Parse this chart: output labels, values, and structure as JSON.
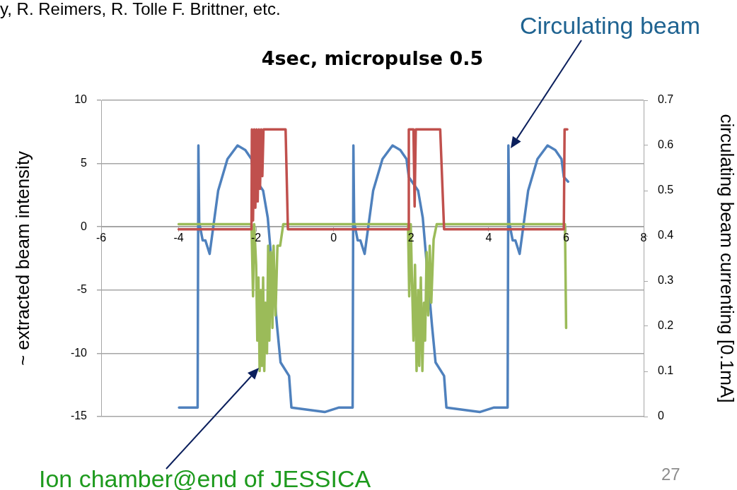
{
  "chart_data": {
    "type": "line",
    "title": "4sec, micropulse 0.5",
    "ylabel": "~ extracted beam intensity",
    "y2label": "circulating beam currenting [0.1mA]",
    "xlim": [
      -6,
      8
    ],
    "xticks": [
      -6,
      -4,
      -2,
      0,
      2,
      4,
      6,
      8
    ],
    "ylim": [
      -15,
      10
    ],
    "yticks": [
      -15,
      -10,
      -5,
      0,
      5,
      10
    ],
    "y2lim": [
      0,
      0.7
    ],
    "y2ticks": [
      0,
      0.1,
      0.2,
      0.3,
      0.4,
      0.5,
      0.6,
      0.7
    ],
    "grid": "y",
    "legend": false,
    "marker": "none",
    "line_style": "solid",
    "series": [
      {
        "color": "#c0504d",
        "x": [
          -4,
          -2.12,
          -2.11,
          -2.08,
          -2.05,
          -2.02,
          -1.99,
          -1.96,
          -1.93,
          -1.9,
          -1.87,
          -1.84,
          -1.81,
          -1.24,
          -1.18,
          1.93,
          1.94,
          2.06,
          2.09,
          2.12,
          2.75,
          2.85,
          5.94,
          5.96,
          6.03
        ],
        "values": [
          -0.2,
          -0.2,
          7.7,
          0.5,
          7.7,
          1.5,
          7.7,
          2,
          7.7,
          3,
          7.7,
          4,
          7.7,
          7.7,
          -0.2,
          -0.2,
          7.7,
          7.7,
          1.6,
          7.7,
          7.7,
          -0.2,
          -0.2,
          7.7,
          7.7
        ]
      },
      {
        "color": "#9bbb59",
        "x": [
          -4,
          -2.12,
          -2.08,
          -2.05,
          -2.0,
          -1.97,
          -1.94,
          -1.91,
          -1.88,
          -1.85,
          -1.82,
          -1.79,
          -1.76,
          -1.72,
          -1.69,
          -1.66,
          -1.62,
          -1.58,
          -1.55,
          -1.5,
          -1.45,
          -1.38,
          -1.3,
          1.92,
          1.95,
          1.99,
          2.02,
          2.06,
          2.1,
          2.14,
          2.18,
          2.21,
          2.25,
          2.29,
          2.33,
          2.36,
          2.4,
          2.44,
          2.48,
          2.52,
          2.58,
          2.66,
          5.97,
          6.0
        ],
        "values": [
          0.2,
          0.2,
          -5.5,
          0.2,
          -3,
          -9,
          -4,
          -11.4,
          -5,
          -11,
          -4,
          -11.4,
          -6,
          -10,
          -1.5,
          -9,
          -2,
          -8,
          -1.5,
          -7,
          -1.5,
          -1.5,
          0.2,
          0.2,
          -5.5,
          0.2,
          -4,
          -9,
          -3,
          -11.4,
          -5,
          -11,
          -4,
          -11.4,
          -6,
          -9,
          -2,
          -7,
          -1.5,
          -6,
          -1,
          0.2,
          0.2,
          -8
        ]
      },
      {
        "color": "#4f81bd",
        "axis": "y2",
        "x": [
          -3.99,
          -3.51,
          -3.49,
          -3.47,
          -3.38,
          -3.31,
          -3.2,
          -2.98,
          -2.74,
          -2.48,
          -2.28,
          -2.12,
          -2.06,
          -1.82,
          -1.7,
          -1.57,
          -1.46,
          -1.37,
          -1.15,
          -1.09,
          -0.23,
          0.14,
          0.49,
          0.51,
          0.53,
          0.62,
          0.69,
          0.8,
          1.02,
          1.26,
          1.52,
          1.72,
          1.88,
          1.94,
          2.18,
          2.3,
          2.43,
          2.54,
          2.63,
          2.85,
          2.91,
          3.77,
          4.14,
          4.49,
          4.51,
          4.53,
          4.62,
          4.69,
          4.8,
          5.02,
          5.26,
          5.52,
          5.72,
          5.88,
          5.94,
          6.05
        ],
        "values": [
          0.02,
          0.02,
          0.6,
          0.43,
          0.39,
          0.39,
          0.36,
          0.5,
          0.57,
          0.6,
          0.59,
          0.57,
          0.53,
          0.5,
          0.44,
          0.31,
          0.2,
          0.12,
          0.09,
          0.02,
          0.01,
          0.02,
          0.02,
          0.6,
          0.43,
          0.39,
          0.39,
          0.36,
          0.5,
          0.57,
          0.6,
          0.59,
          0.57,
          0.53,
          0.5,
          0.44,
          0.31,
          0.2,
          0.12,
          0.09,
          0.02,
          0.01,
          0.02,
          0.02,
          0.6,
          0.43,
          0.39,
          0.39,
          0.36,
          0.5,
          0.57,
          0.6,
          0.59,
          0.57,
          0.53,
          0.52
        ]
      }
    ],
    "annotations": [
      "y, R. Reimers, R. Tolle F. Brittner, etc.",
      "Circulating beam",
      "Ion chamber@end of JESSICA",
      "27"
    ]
  }
}
